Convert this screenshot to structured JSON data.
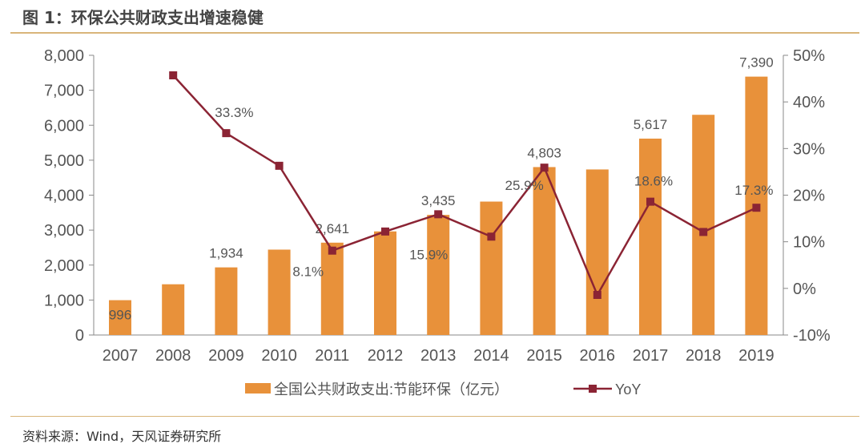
{
  "title": "图 1：环保公共财政支出增速稳健",
  "source": "资料来源：Wind，天风证券研究所",
  "colors": {
    "bar": "#E8913A",
    "line": "#8B2434",
    "rule": "#D9B57A"
  },
  "chart_data": {
    "type": "bar+line",
    "categories": [
      "2007",
      "2008",
      "2009",
      "2010",
      "2011",
      "2012",
      "2013",
      "2014",
      "2015",
      "2016",
      "2017",
      "2018",
      "2019"
    ],
    "series": [
      {
        "name": "全国公共财政支出:节能环保（亿元）",
        "type": "bar",
        "axis": "left",
        "values": [
          996,
          1451,
          1934,
          2442,
          2641,
          2963,
          3435,
          3816,
          4803,
          4735,
          5617,
          6298,
          7390
        ],
        "labels": [
          "996",
          null,
          "1,934",
          null,
          "2,641",
          null,
          "3,435",
          null,
          "4,803",
          null,
          "5,617",
          null,
          "7,390"
        ]
      },
      {
        "name": "YoY",
        "type": "line",
        "axis": "right",
        "values": [
          null,
          45.7,
          33.3,
          26.3,
          8.1,
          12.2,
          15.9,
          11.1,
          25.9,
          -1.4,
          18.6,
          12.1,
          17.3
        ],
        "labels": [
          null,
          null,
          "33.3%",
          null,
          "8.1%",
          null,
          "15.9%",
          null,
          "25.9%",
          null,
          "18.6%",
          null,
          "17.3%"
        ]
      }
    ],
    "left_axis": {
      "ylim": [
        0,
        8000
      ],
      "ticks": [
        "0",
        "1,000",
        "2,000",
        "3,000",
        "4,000",
        "5,000",
        "6,000",
        "7,000",
        "8,000"
      ]
    },
    "right_axis": {
      "ylim": [
        -10,
        50
      ],
      "ticks": [
        "-10%",
        "0%",
        "10%",
        "20%",
        "30%",
        "40%",
        "50%"
      ]
    },
    "grid": false,
    "legend": "bottom"
  }
}
